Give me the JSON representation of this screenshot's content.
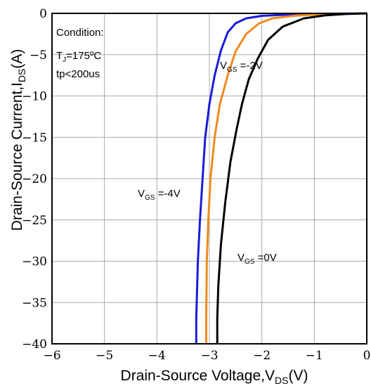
{
  "chart_data": {
    "type": "line",
    "xlabel": {
      "main": "Drain-Source Voltage,V",
      "sub": "DS",
      "unit": "(V)"
    },
    "ylabel": {
      "main": "Drain-Source Current,I",
      "sub": "DS",
      "unit": "(A)"
    },
    "xlim": [
      -6,
      0
    ],
    "ylim": [
      -40,
      0
    ],
    "x_ticks": [
      -6,
      -5,
      -4,
      -3,
      -2,
      -1,
      0
    ],
    "y_ticks": [
      0,
      -5,
      -10,
      -15,
      -20,
      -25,
      -30,
      -35,
      -40
    ],
    "x_tick_labels": [
      "−6",
      "−5",
      "−4",
      "−3",
      "−2",
      "−1",
      "0"
    ],
    "y_tick_labels": [
      "0",
      "−5",
      "−10",
      "−15",
      "−20",
      "−25",
      "−30",
      "−35",
      "−40"
    ],
    "grid": true,
    "condition": {
      "title": "Condition:",
      "temp_prefix": "T",
      "temp_sub": "J",
      "temp_value": "=175ºC",
      "pulse": "tp<200us"
    },
    "series": [
      {
        "name": "V_GS = -4V",
        "label_main": "V",
        "label_sub": "GS",
        "label_value": " =-4V",
        "color": "#1a1adb",
        "points": [
          [
            -3.25,
            -40
          ],
          [
            -3.25,
            -37
          ],
          [
            -3.22,
            -30
          ],
          [
            -3.18,
            -25
          ],
          [
            -3.13,
            -20
          ],
          [
            -3.08,
            -15
          ],
          [
            -3.0,
            -11
          ],
          [
            -2.9,
            -7.5
          ],
          [
            -2.78,
            -4.5
          ],
          [
            -2.65,
            -2.3
          ],
          [
            -2.5,
            -1.2
          ],
          [
            -2.3,
            -0.6
          ],
          [
            -2.0,
            -0.3
          ],
          [
            -1.5,
            -0.15
          ],
          [
            -1.0,
            -0.08
          ],
          [
            -0.5,
            -0.03
          ],
          [
            0,
            0
          ]
        ]
      },
      {
        "name": "V_GS = -2V",
        "label_main": "V",
        "label_sub": "GS",
        "label_value": " =-2V",
        "color": "#f08a1c",
        "points": [
          [
            -3.06,
            -40
          ],
          [
            -3.06,
            -37
          ],
          [
            -3.05,
            -30
          ],
          [
            -3.02,
            -25
          ],
          [
            -2.98,
            -20
          ],
          [
            -2.9,
            -15
          ],
          [
            -2.8,
            -11
          ],
          [
            -2.65,
            -7.5
          ],
          [
            -2.5,
            -4.6
          ],
          [
            -2.3,
            -2.5
          ],
          [
            -2.05,
            -1.2
          ],
          [
            -1.8,
            -0.6
          ],
          [
            -1.4,
            -0.3
          ],
          [
            -1.0,
            -0.15
          ],
          [
            -0.5,
            -0.05
          ],
          [
            0,
            0
          ]
        ]
      },
      {
        "name": "V_GS = 0V",
        "label_main": "V",
        "label_sub": "GS",
        "label_value": " =0V",
        "color": "#000000",
        "points": [
          [
            -2.85,
            -40
          ],
          [
            -2.85,
            -37
          ],
          [
            -2.83,
            -33
          ],
          [
            -2.78,
            -28
          ],
          [
            -2.7,
            -23
          ],
          [
            -2.6,
            -18
          ],
          [
            -2.48,
            -14
          ],
          [
            -2.38,
            -11
          ],
          [
            -2.25,
            -8
          ],
          [
            -2.08,
            -5.5
          ],
          [
            -1.88,
            -3.2
          ],
          [
            -1.6,
            -1.6
          ],
          [
            -1.2,
            -0.6
          ],
          [
            -0.8,
            -0.25
          ],
          [
            -0.4,
            -0.08
          ],
          [
            0,
            0
          ]
        ]
      }
    ]
  }
}
